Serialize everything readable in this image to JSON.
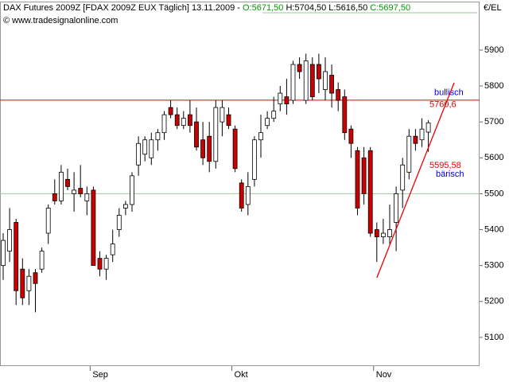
{
  "chart_data": {
    "type": "candlestick",
    "header": {
      "text": "DAX Futures 2009Z [FDAX 2009Z EUX  Täglich] 13.11.2009 - ",
      "open": "O:5671,50",
      "high": "H:5704,50",
      "low": "L:5616,50",
      "close": "C:5697,50"
    },
    "subtitle": "© www.tradesignalonline.com",
    "y_label": "€/EL",
    "categories": [
      null,
      null,
      null,
      null,
      null,
      null,
      null,
      null,
      null,
      null,
      null,
      null,
      null,
      null,
      "Sep",
      null,
      null,
      null,
      null,
      null,
      null,
      null,
      null,
      null,
      null,
      null,
      null,
      null,
      null,
      null,
      null,
      null,
      null,
      null,
      null,
      null,
      "Okt",
      null,
      null,
      null,
      null,
      null,
      null,
      null,
      null,
      null,
      null,
      null,
      null,
      null,
      null,
      null,
      null,
      null,
      null,
      null,
      null,
      null,
      "Nov",
      null,
      null,
      null,
      null,
      null,
      null,
      null,
      null
    ],
    "open": [
      5300,
      5340,
      5420,
      5290,
      5230,
      5280,
      5290,
      5390,
      5500,
      5480,
      5540,
      5500,
      5515,
      5480,
      5510,
      5320,
      5290,
      5330,
      5400,
      5460,
      5470,
      5580,
      5610,
      5600,
      5650,
      5670,
      5740,
      5720,
      5690,
      5720,
      5700,
      5650,
      5660,
      5590,
      5700,
      5720,
      5680,
      5530,
      5470,
      5540,
      5650,
      5690,
      5710,
      5750,
      5770,
      5760,
      5860,
      5760,
      5860,
      5860,
      5790,
      5830,
      5790,
      5770,
      5680,
      5620,
      5600,
      5620,
      5400,
      5380,
      5380,
      5420,
      5510,
      5560,
      5660,
      5650,
      5671.5
    ],
    "high": [
      5390,
      5460,
      5430,
      5320,
      5290,
      5290,
      5350,
      5470,
      5540,
      5580,
      5570,
      5560,
      5580,
      5520,
      5520,
      5340,
      5330,
      5400,
      5460,
      5480,
      5560,
      5660,
      5660,
      5670,
      5680,
      5730,
      5760,
      5740,
      5730,
      5760,
      5740,
      5700,
      5700,
      5760,
      5760,
      5740,
      5690,
      5540,
      5560,
      5660,
      5720,
      5730,
      5770,
      5800,
      5820,
      5870,
      5880,
      5890,
      5880,
      5890,
      5880,
      5860,
      5810,
      5790,
      5690,
      5630,
      5630,
      5630,
      5420,
      5430,
      5470,
      5520,
      5600,
      5680,
      5680,
      5710,
      5704.5
    ],
    "low": [
      5260,
      5310,
      5190,
      5190,
      5190,
      5170,
      5280,
      5360,
      5470,
      5470,
      5510,
      5450,
      5490,
      5440,
      5300,
      5270,
      5260,
      5310,
      5380,
      5440,
      5450,
      5550,
      5590,
      5580,
      5620,
      5650,
      5710,
      5680,
      5680,
      5670,
      5620,
      5580,
      5560,
      5570,
      5660,
      5680,
      5560,
      5450,
      5440,
      5520,
      5600,
      5680,
      5700,
      5730,
      5720,
      5750,
      5820,
      5750,
      5760,
      5780,
      5760,
      5740,
      5730,
      5650,
      5600,
      5440,
      5470,
      5380,
      5310,
      5360,
      5360,
      5340,
      5460,
      5540,
      5620,
      5630,
      5616.5
    ],
    "close": [
      5370,
      5400,
      5230,
      5210,
      5270,
      5250,
      5340,
      5460,
      5480,
      5560,
      5520,
      5510,
      5500,
      5500,
      5300,
      5290,
      5320,
      5360,
      5440,
      5470,
      5550,
      5640,
      5650,
      5650,
      5670,
      5720,
      5720,
      5690,
      5710,
      5690,
      5630,
      5600,
      5590,
      5740,
      5740,
      5690,
      5570,
      5460,
      5520,
      5650,
      5670,
      5710,
      5730,
      5780,
      5750,
      5860,
      5840,
      5870,
      5770,
      5820,
      5840,
      5780,
      5760,
      5670,
      5640,
      5460,
      5500,
      5390,
      5380,
      5390,
      5400,
      5500,
      5580,
      5660,
      5640,
      5680,
      5697.5
    ],
    "up_color": "#ffffff",
    "down_color": "#cc0000",
    "ylim": [
      5020,
      6035
    ],
    "yticks": [
      5100,
      5200,
      5300,
      5400,
      5500,
      5600,
      5700,
      5800,
      5900
    ],
    "level_lines": [
      {
        "value": 5760.6,
        "label": "5760,6",
        "signal": "bullisch",
        "color": "#dd0000"
      },
      {
        "value": 5500,
        "color": "#99cc99"
      }
    ],
    "trendline": {
      "x": [
        58,
        70
      ],
      "y": [
        5266,
        5809
      ],
      "label": "5595,58",
      "signal": "bärisch",
      "color": "#ee0000"
    }
  }
}
